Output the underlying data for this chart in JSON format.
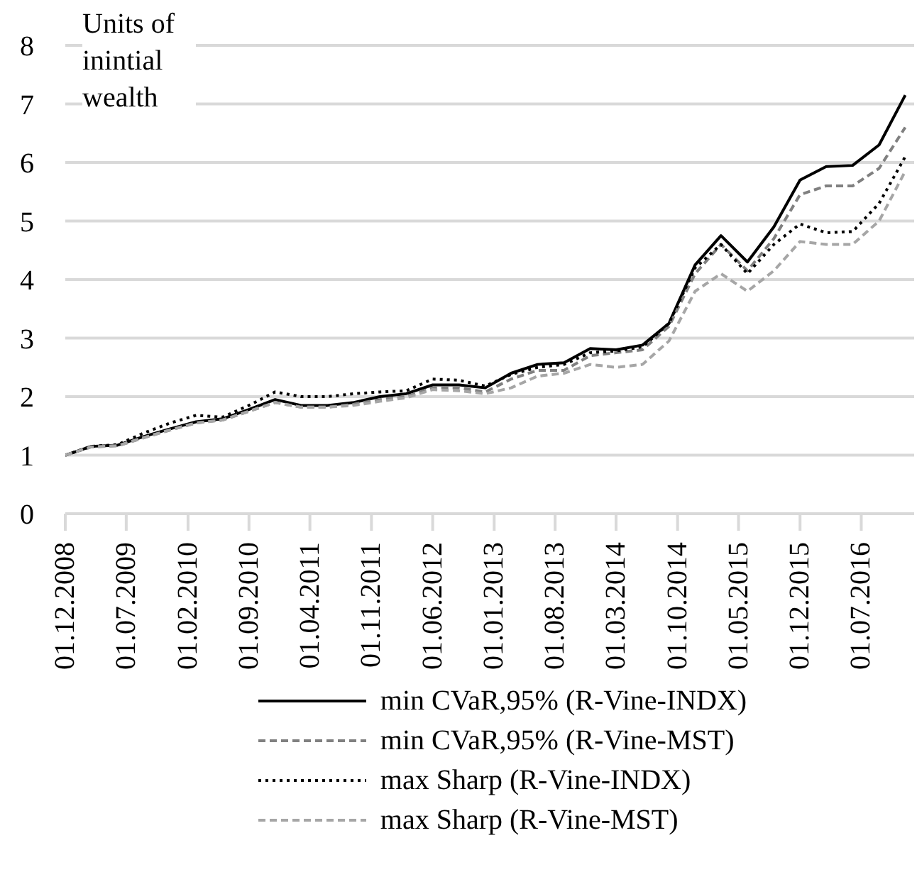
{
  "chart_data": {
    "type": "line",
    "ylabel": "Units of inintial wealth",
    "x": [
      "2008-12",
      "2009-03",
      "2009-06",
      "2009-09",
      "2009-12",
      "2010-03",
      "2010-06",
      "2010-09",
      "2010-12",
      "2011-03",
      "2011-06",
      "2011-09",
      "2011-12",
      "2012-03",
      "2012-06",
      "2012-09",
      "2012-12",
      "2013-03",
      "2013-06",
      "2013-09",
      "2013-12",
      "2014-03",
      "2014-06",
      "2014-09",
      "2014-12",
      "2015-03",
      "2015-06",
      "2015-09",
      "2015-12",
      "2016-03",
      "2016-06",
      "2016-09",
      "2016-12"
    ],
    "series": [
      {
        "name": "min CVaR,95% (R-Vine-INDX)",
        "color": "#000000",
        "line_style": "solid",
        "values": [
          1.0,
          1.15,
          1.17,
          1.32,
          1.45,
          1.57,
          1.62,
          1.78,
          1.95,
          1.85,
          1.85,
          1.9,
          2.0,
          2.05,
          2.2,
          2.2,
          2.15,
          2.4,
          2.55,
          2.58,
          2.82,
          2.8,
          2.88,
          3.25,
          4.25,
          4.75,
          4.3,
          4.9,
          5.7,
          5.93,
          5.95,
          6.3,
          7.15
        ]
      },
      {
        "name": "min CVaR,95% (R-Vine-MST)",
        "color": "#808080",
        "line_style": "dashed",
        "values": [
          1.0,
          1.14,
          1.16,
          1.3,
          1.43,
          1.55,
          1.6,
          1.75,
          1.9,
          1.82,
          1.82,
          1.87,
          1.95,
          2.0,
          2.15,
          2.15,
          2.08,
          2.3,
          2.45,
          2.45,
          2.7,
          2.75,
          2.8,
          3.2,
          4.1,
          4.6,
          4.15,
          4.7,
          5.45,
          5.6,
          5.6,
          5.9,
          6.6
        ]
      },
      {
        "name": "max Sharp (R-Vine-INDX)",
        "color": "#000000",
        "line_style": "dotted",
        "values": [
          1.0,
          1.15,
          1.18,
          1.38,
          1.55,
          1.68,
          1.65,
          1.85,
          2.08,
          2.0,
          2.0,
          2.05,
          2.08,
          2.1,
          2.3,
          2.28,
          2.18,
          2.38,
          2.5,
          2.55,
          2.75,
          2.78,
          2.85,
          3.25,
          4.2,
          4.6,
          4.1,
          4.6,
          4.95,
          4.8,
          4.82,
          5.3,
          6.1
        ]
      },
      {
        "name": "max Sharp (R-Vine-MST)",
        "color": "#a6a6a6",
        "line_style": "dashed",
        "values": [
          1.0,
          1.14,
          1.16,
          1.3,
          1.43,
          1.55,
          1.6,
          1.75,
          1.9,
          1.82,
          1.82,
          1.85,
          1.92,
          1.98,
          2.12,
          2.1,
          2.05,
          2.15,
          2.35,
          2.4,
          2.55,
          2.5,
          2.55,
          2.95,
          3.8,
          4.1,
          3.8,
          4.15,
          4.65,
          4.6,
          4.6,
          5.0,
          5.85
        ]
      }
    ],
    "xlim": [
      "2008-12-01",
      "2017-01-01"
    ],
    "xticks": [
      {
        "value": "2008-12-01",
        "label": "01.12.2008"
      },
      {
        "value": "2009-07-01",
        "label": "01.07.2009"
      },
      {
        "value": "2010-02-01",
        "label": "01.02.2010"
      },
      {
        "value": "2010-09-01",
        "label": "01.09.2010"
      },
      {
        "value": "2011-04-01",
        "label": "01.04.2011"
      },
      {
        "value": "2011-11-01",
        "label": "01.11.2011"
      },
      {
        "value": "2012-06-01",
        "label": "01.06.2012"
      },
      {
        "value": "2013-01-01",
        "label": "01.01.2013"
      },
      {
        "value": "2013-08-01",
        "label": "01.08.2013"
      },
      {
        "value": "2014-03-01",
        "label": "01.03.2014"
      },
      {
        "value": "2014-10-01",
        "label": "01.10.2014"
      },
      {
        "value": "2015-05-01",
        "label": "01.05.2015"
      },
      {
        "value": "2015-12-01",
        "label": "01.12.2015"
      },
      {
        "value": "2016-07-01",
        "label": "01.07.2016"
      }
    ],
    "ylim": [
      0,
      8
    ],
    "yticks": [
      0,
      1,
      2,
      3,
      4,
      5,
      6,
      7,
      8
    ],
    "grid": "y",
    "legend": "bottom",
    "marker": "none"
  }
}
